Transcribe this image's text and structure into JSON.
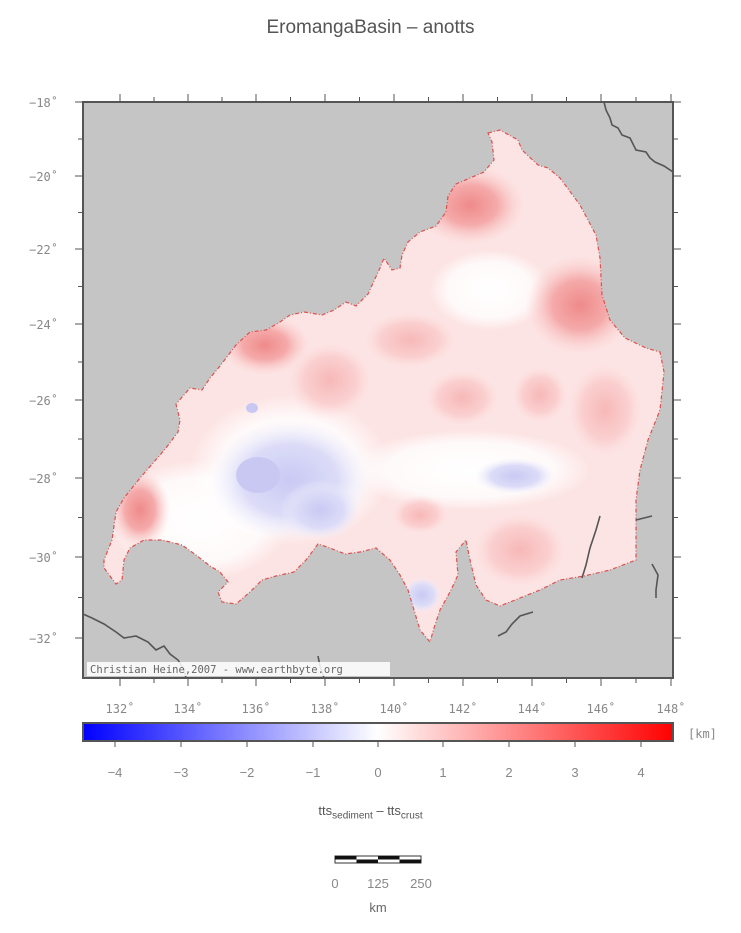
{
  "title": "EromangaBasin – anotts",
  "map": {
    "lat_labels": [
      "−18˚",
      "−20˚",
      "−22˚",
      "−24˚",
      "−26˚",
      "−28˚",
      "−30˚",
      "−32˚"
    ],
    "lon_labels": [
      "132˚",
      "134˚",
      "136˚",
      "138˚",
      "140˚",
      "142˚",
      "144˚",
      "146˚",
      "148˚"
    ],
    "credit": "Christian Heine,2007 - www.earthbyte.org",
    "colors": {
      "land": "#c5c5c5",
      "coast": "#555555",
      "basin_edge": "#d9534f"
    }
  },
  "colorbar": {
    "tick_labels": [
      "−4",
      "−3",
      "−2",
      "−1",
      "0",
      "1",
      "2",
      "3",
      "4"
    ],
    "unit": "[km]",
    "min": -4.5,
    "max": 4.5,
    "colors": {
      "low": "#0000ff",
      "mid": "#ffffff",
      "high": "#ff0000"
    }
  },
  "formula": {
    "a": "tts",
    "a_sub": "sediment",
    "op": " – ",
    "b": "tts",
    "b_sub": "crust"
  },
  "scalebar": {
    "labels": [
      "0",
      "125",
      "250"
    ],
    "unit": "km"
  }
}
